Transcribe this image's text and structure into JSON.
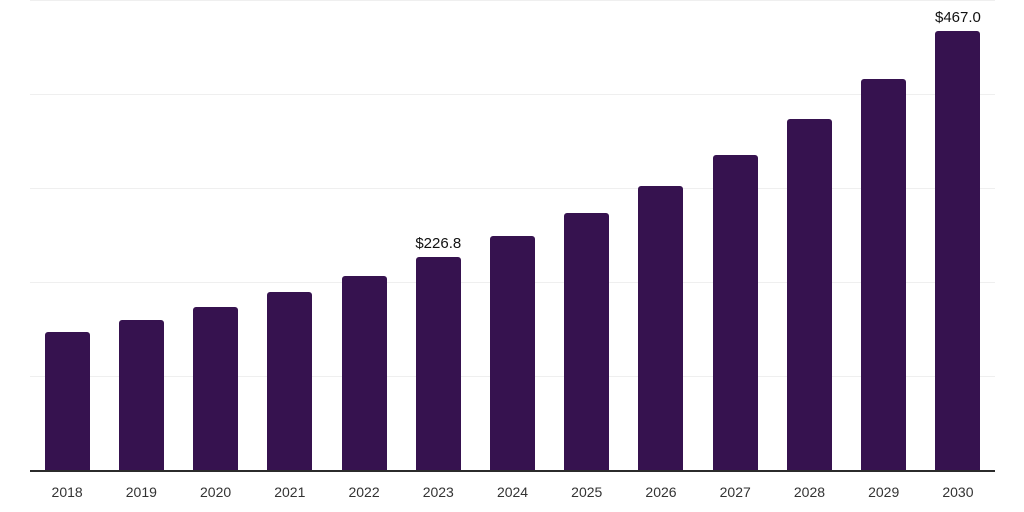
{
  "chart_data": {
    "type": "bar",
    "title": "",
    "xlabel": "",
    "ylabel": "",
    "categories": [
      "2018",
      "2019",
      "2020",
      "2021",
      "2022",
      "2023",
      "2024",
      "2025",
      "2026",
      "2027",
      "2028",
      "2029",
      "2030"
    ],
    "values": [
      147.0,
      159.5,
      173.5,
      189.5,
      206.5,
      226.8,
      248.5,
      273.5,
      302.0,
      335.0,
      373.5,
      416.0,
      467.0
    ],
    "data_labels": [
      "",
      "",
      "",
      "",
      "",
      "$226.8",
      "",
      "",
      "",
      "",
      "",
      "",
      "$467.0"
    ],
    "ylim": [
      0,
      500
    ],
    "gridline_values": [
      100,
      200,
      300,
      400,
      500
    ],
    "grid": "horizontal-only",
    "legend": "none",
    "y_axis_tick_labels": "none"
  },
  "colors": {
    "background": "#ffffff",
    "bar": "#36124F",
    "gridline": "#efefef",
    "axis_line": "#2b2b2b",
    "tick_label": "#333333",
    "value_label": "#111111"
  }
}
